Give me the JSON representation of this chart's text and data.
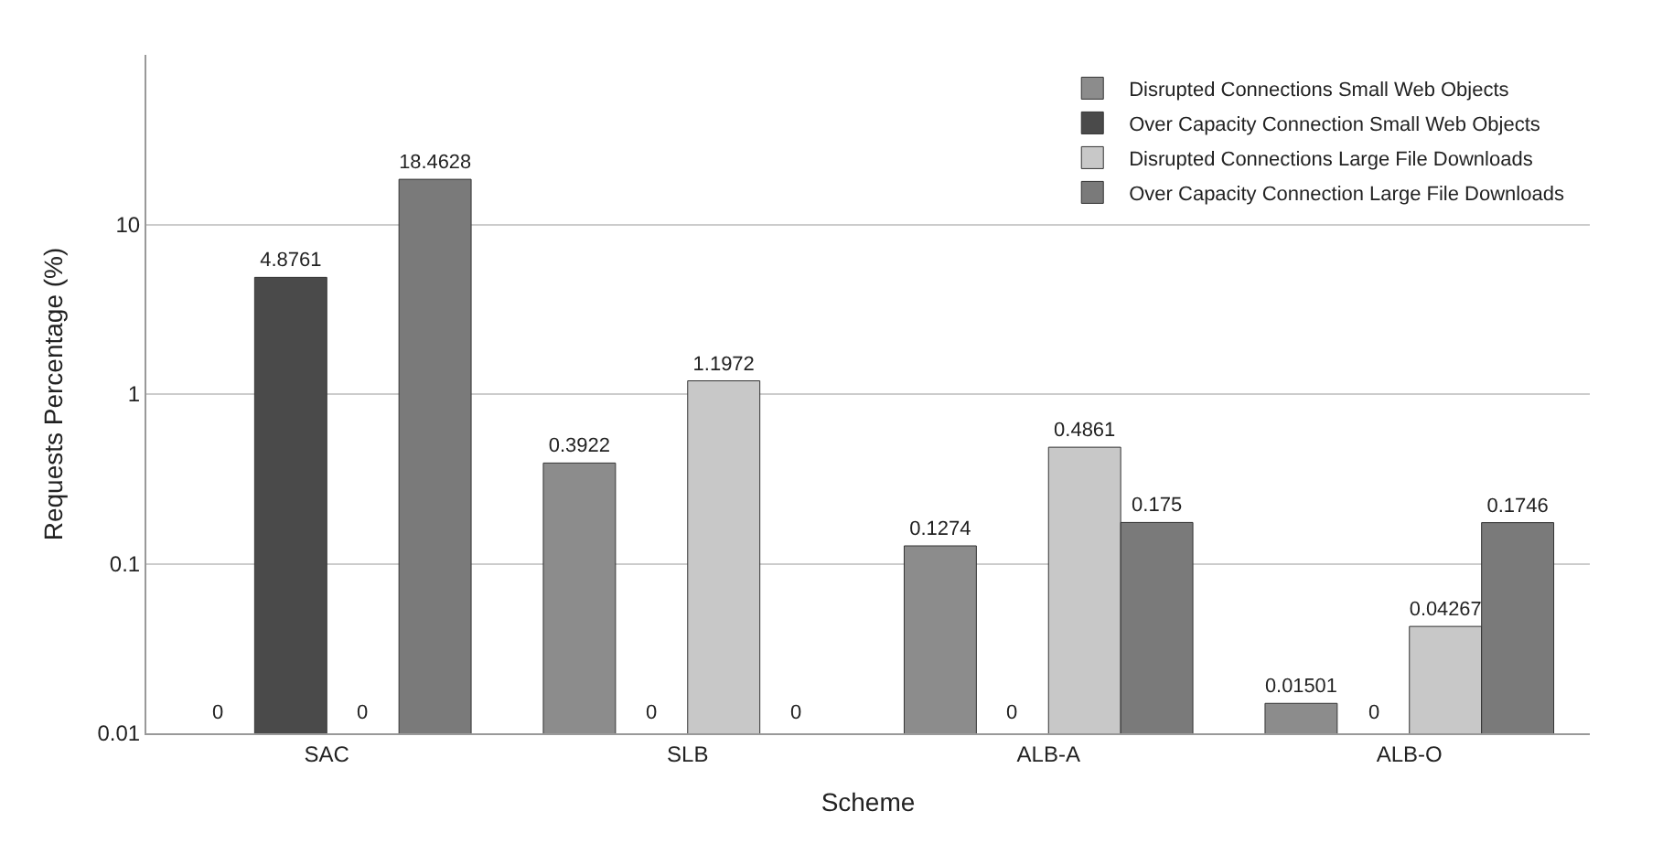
{
  "chart_data": {
    "type": "bar",
    "xlabel": "Scheme",
    "ylabel": "Requests Percentage (%)",
    "categories": [
      "SAC",
      "SLB",
      "ALB-A",
      "ALB-O"
    ],
    "series": [
      {
        "name": "Disrupted Connections Small Web Objects",
        "color": "#8c8c8c",
        "values": [
          null,
          0.3922,
          0.1274,
          0.01501
        ],
        "value_labels": [
          "0",
          "0.3922",
          "0.1274",
          "0.01501"
        ]
      },
      {
        "name": "Over Capacity Connection Small Web Objects",
        "color": "#4a4a4a",
        "values": [
          4.8761,
          null,
          null,
          null
        ],
        "value_labels": [
          "4.8761",
          "0",
          "0",
          "0"
        ]
      },
      {
        "name": "Disrupted Connections Large File Downloads",
        "color": "#c8c8c8",
        "values": [
          null,
          1.1972,
          0.4861,
          0.04267
        ],
        "value_labels": [
          "0",
          "1.1972",
          "0.4861",
          "0.04267"
        ]
      },
      {
        "name": "Over Capacity Connection Large File Downloads",
        "color": "#7a7a7a",
        "values": [
          18.4628,
          null,
          0.175,
          0.1746
        ],
        "value_labels": [
          "18.4628",
          "0",
          "0.175",
          "0.1746"
        ]
      }
    ],
    "log": "y",
    "ylim": [
      0.01,
      100
    ],
    "yticks": [
      0.01,
      0.1,
      1,
      10
    ],
    "grid": "y",
    "legend": "top right"
  }
}
